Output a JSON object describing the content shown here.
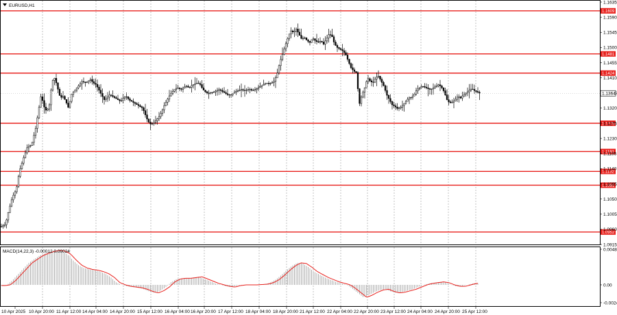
{
  "chart_data": [
    {
      "type": "candlestick",
      "title": "EURUSD,H1",
      "ylim": [
        1.0915,
        1.1635
      ],
      "y_ticks": [
        "1.1635",
        "1.1590",
        "1.1545",
        "1.1500",
        "1.1455",
        "1.1410",
        "1.1365",
        "1.1320",
        "1.1275",
        "1.1230",
        "1.1185",
        "1.1140",
        "1.1095",
        "1.1050",
        "1.1005",
        "1.0960",
        "1.0915"
      ],
      "x_ticks": [
        "10 Apr 2025",
        "10 Apr 20:00",
        "11 Apr 12:00",
        "14 Apr 04:00",
        "14 Apr 20:00",
        "15 Apr 12:00",
        "16 Apr 04:00",
        "16 Apr 20:00",
        "17 Apr 12:00",
        "18 Apr 04:00",
        "18 Apr 20:00",
        "21 Apr 12:00",
        "22 Apr 04:00",
        "22 Apr 20:00",
        "23 Apr 12:00",
        "24 Apr 04:00",
        "24 Apr 20:00",
        "25 Apr 12:00"
      ],
      "current_price": "1.1364",
      "levels": [
        "1.1609",
        "1.1481",
        "1.1424",
        "1.1275",
        "1.1191",
        "1.1132",
        "1.1091",
        "1.0952"
      ],
      "close_path": [
        [
          0,
          1.0968
        ],
        [
          6,
          1.0975
        ],
        [
          10,
          1.101
        ],
        [
          16,
          1.1055
        ],
        [
          22,
          1.108
        ],
        [
          26,
          1.113
        ],
        [
          32,
          1.117
        ],
        [
          38,
          1.1205
        ],
        [
          44,
          1.121
        ],
        [
          50,
          1.126
        ],
        [
          54,
          1.131
        ],
        [
          58,
          1.136
        ],
        [
          62,
          1.1325
        ],
        [
          66,
          1.131
        ],
        [
          70,
          1.133
        ],
        [
          74,
          1.14
        ],
        [
          78,
          1.141
        ],
        [
          82,
          1.138
        ],
        [
          86,
          1.135
        ],
        [
          90,
          1.1355
        ],
        [
          94,
          1.134
        ],
        [
          98,
          1.132
        ],
        [
          102,
          1.136
        ],
        [
          106,
          1.137
        ],
        [
          110,
          1.138
        ],
        [
          114,
          1.139
        ],
        [
          118,
          1.14
        ],
        [
          122,
          1.1395
        ],
        [
          126,
          1.14
        ],
        [
          130,
          1.1405
        ],
        [
          134,
          1.1395
        ],
        [
          138,
          1.139
        ],
        [
          142,
          1.1375
        ],
        [
          146,
          1.136
        ],
        [
          150,
          1.1345
        ],
        [
          154,
          1.135
        ],
        [
          158,
          1.136
        ],
        [
          162,
          1.1355
        ],
        [
          166,
          1.135
        ],
        [
          170,
          1.1345
        ],
        [
          174,
          1.134
        ],
        [
          178,
          1.135
        ],
        [
          182,
          1.1355
        ],
        [
          186,
          1.1345
        ],
        [
          190,
          1.134
        ],
        [
          194,
          1.1335
        ],
        [
          198,
          1.133
        ],
        [
          202,
          1.1325
        ],
        [
          206,
          1.132
        ],
        [
          210,
          1.13
        ],
        [
          214,
          1.128
        ],
        [
          218,
          1.1272
        ],
        [
          222,
          1.1276
        ],
        [
          226,
          1.1285
        ],
        [
          230,
          1.1295
        ],
        [
          234,
          1.131
        ],
        [
          238,
          1.133
        ],
        [
          242,
          1.1345
        ],
        [
          246,
          1.136
        ],
        [
          250,
          1.137
        ],
        [
          254,
          1.1378
        ],
        [
          258,
          1.138
        ],
        [
          262,
          1.1375
        ],
        [
          266,
          1.1382
        ],
        [
          270,
          1.1385
        ],
        [
          274,
          1.138
        ],
        [
          278,
          1.1388
        ],
        [
          282,
          1.1392
        ],
        [
          286,
          1.1395
        ],
        [
          290,
          1.139
        ],
        [
          294,
          1.1375
        ],
        [
          298,
          1.1368
        ],
        [
          302,
          1.1362
        ],
        [
          306,
          1.1366
        ],
        [
          310,
          1.1368
        ],
        [
          314,
          1.1372
        ],
        [
          318,
          1.1375
        ],
        [
          322,
          1.137
        ],
        [
          326,
          1.1365
        ],
        [
          330,
          1.136
        ],
        [
          334,
          1.1358
        ],
        [
          338,
          1.1365
        ],
        [
          342,
          1.137
        ],
        [
          346,
          1.1372
        ],
        [
          350,
          1.1375
        ],
        [
          354,
          1.1372
        ],
        [
          358,
          1.1374
        ],
        [
          362,
          1.1376
        ],
        [
          366,
          1.1372
        ],
        [
          370,
          1.1375
        ],
        [
          374,
          1.138
        ],
        [
          378,
          1.1385
        ],
        [
          382,
          1.139
        ],
        [
          386,
          1.1395
        ],
        [
          390,
          1.1392
        ],
        [
          394,
          1.1395
        ],
        [
          398,
          1.14
        ],
        [
          402,
          1.142
        ],
        [
          406,
          1.1455
        ],
        [
          410,
          1.148
        ],
        [
          414,
          1.1505
        ],
        [
          418,
          1.153
        ],
        [
          422,
          1.155
        ],
        [
          426,
          1.1545
        ],
        [
          430,
          1.1555
        ],
        [
          434,
          1.154
        ],
        [
          438,
          1.1525
        ],
        [
          442,
          1.153
        ],
        [
          446,
          1.152
        ],
        [
          450,
          1.1515
        ],
        [
          454,
          1.1528
        ],
        [
          458,
          1.152
        ],
        [
          462,
          1.1515
        ],
        [
          466,
          1.152
        ],
        [
          470,
          1.151
        ],
        [
          474,
          1.1525
        ],
        [
          478,
          1.154
        ],
        [
          482,
          1.1535
        ],
        [
          486,
          1.151
        ],
        [
          490,
          1.15
        ],
        [
          494,
          1.1495
        ],
        [
          498,
          1.149
        ],
        [
          502,
          1.148
        ],
        [
          506,
          1.146
        ],
        [
          510,
          1.144
        ],
        [
          514,
          1.143
        ],
        [
          518,
          1.1425
        ],
        [
          522,
          1.133
        ],
        [
          526,
          1.136
        ],
        [
          530,
          1.138
        ],
        [
          534,
          1.141
        ],
        [
          538,
          1.14
        ],
        [
          542,
          1.1395
        ],
        [
          546,
          1.141
        ],
        [
          550,
          1.1415
        ],
        [
          554,
          1.14
        ],
        [
          558,
          1.1385
        ],
        [
          562,
          1.136
        ],
        [
          566,
          1.1345
        ],
        [
          570,
          1.133
        ],
        [
          574,
          1.1325
        ],
        [
          578,
          1.1318
        ],
        [
          582,
          1.1322
        ],
        [
          586,
          1.133
        ],
        [
          590,
          1.134
        ],
        [
          594,
          1.135
        ],
        [
          598,
          1.1352
        ],
        [
          602,
          1.136
        ],
        [
          606,
          1.1375
        ],
        [
          610,
          1.138
        ],
        [
          614,
          1.1385
        ],
        [
          618,
          1.1382
        ],
        [
          622,
          1.1378
        ],
        [
          626,
          1.1375
        ],
        [
          630,
          1.138
        ],
        [
          634,
          1.1385
        ],
        [
          638,
          1.139
        ],
        [
          642,
          1.1382
        ],
        [
          646,
          1.1368
        ],
        [
          650,
          1.1345
        ],
        [
          654,
          1.1335
        ],
        [
          658,
          1.1338
        ],
        [
          662,
          1.1345
        ],
        [
          666,
          1.1355
        ],
        [
          670,
          1.135
        ],
        [
          674,
          1.136
        ],
        [
          678,
          1.1365
        ],
        [
          682,
          1.1372
        ],
        [
          686,
          1.1378
        ],
        [
          690,
          1.1372
        ],
        [
          694,
          1.1368
        ],
        [
          698,
          1.1364
        ]
      ]
    },
    {
      "type": "histogram",
      "title": "MACD(14,22,3) -0.00012 0.00024",
      "ylim": [
        -0.00243,
        0.00485
      ],
      "y_ticks": [
        "0.00485",
        "0.00",
        "-0.00243"
      ],
      "histogram": [
        [
          0,
          -0.0001
        ],
        [
          8,
          0.0
        ],
        [
          16,
          0.0006
        ],
        [
          24,
          0.0014
        ],
        [
          32,
          0.0022
        ],
        [
          40,
          0.003
        ],
        [
          48,
          0.0035
        ],
        [
          56,
          0.004
        ],
        [
          64,
          0.0043
        ],
        [
          72,
          0.00455
        ],
        [
          80,
          0.0047
        ],
        [
          88,
          0.0046
        ],
        [
          96,
          0.0042
        ],
        [
          104,
          0.0034
        ],
        [
          112,
          0.0027
        ],
        [
          120,
          0.0023
        ],
        [
          128,
          0.0021
        ],
        [
          136,
          0.002
        ],
        [
          144,
          0.0018
        ],
        [
          152,
          0.0015
        ],
        [
          160,
          0.001
        ],
        [
          168,
          0.0003
        ],
        [
          176,
          0.0
        ],
        [
          184,
          -0.0002
        ],
        [
          192,
          -0.0003
        ],
        [
          200,
          -0.0004
        ],
        [
          208,
          -0.0006
        ],
        [
          216,
          -0.0009
        ],
        [
          224,
          -0.0011
        ],
        [
          232,
          -0.0008
        ],
        [
          240,
          -0.0003
        ],
        [
          248,
          0.0004
        ],
        [
          256,
          0.0008
        ],
        [
          264,
          0.0009
        ],
        [
          272,
          0.0009
        ],
        [
          280,
          0.001
        ],
        [
          288,
          0.0011
        ],
        [
          296,
          0.0008
        ],
        [
          304,
          0.0005
        ],
        [
          312,
          0.0002
        ],
        [
          320,
          0.0
        ],
        [
          328,
          -0.0002
        ],
        [
          336,
          -0.0003
        ],
        [
          344,
          -0.0001
        ],
        [
          352,
          0.0
        ],
        [
          360,
          0.0
        ],
        [
          368,
          0.0
        ],
        [
          376,
          5e-05
        ],
        [
          384,
          0.0001
        ],
        [
          392,
          0.0003
        ],
        [
          400,
          0.0007
        ],
        [
          408,
          0.0013
        ],
        [
          416,
          0.002
        ],
        [
          424,
          0.0026
        ],
        [
          432,
          0.003
        ],
        [
          440,
          0.0029
        ],
        [
          448,
          0.0024
        ],
        [
          456,
          0.0018
        ],
        [
          464,
          0.0014
        ],
        [
          472,
          0.001
        ],
        [
          480,
          0.0007
        ],
        [
          488,
          0.0004
        ],
        [
          496,
          0.0002
        ],
        [
          504,
          0.0
        ],
        [
          512,
          -0.0005
        ],
        [
          520,
          -0.0011
        ],
        [
          528,
          -0.0017
        ],
        [
          536,
          -0.0014
        ],
        [
          544,
          -0.001
        ],
        [
          552,
          -0.0007
        ],
        [
          560,
          -0.0006
        ],
        [
          568,
          -0.0009
        ],
        [
          576,
          -0.0011
        ],
        [
          584,
          -0.001
        ],
        [
          592,
          -0.0008
        ],
        [
          600,
          -0.0006
        ],
        [
          608,
          -0.0003
        ],
        [
          616,
          0.0
        ],
        [
          624,
          0.0002
        ],
        [
          632,
          0.0003
        ],
        [
          640,
          0.0004
        ],
        [
          648,
          0.0003
        ],
        [
          656,
          0.0
        ],
        [
          664,
          -0.0002
        ],
        [
          672,
          -0.0002
        ],
        [
          680,
          0.0
        ],
        [
          688,
          0.0002
        ],
        [
          696,
          0.00024
        ]
      ]
    }
  ],
  "colors": {
    "level_line": "#e8201c",
    "signal_line": "#e8201c",
    "candles": "#000000",
    "histogram": "#a6a6a6",
    "grid": "#9a9a9a"
  },
  "icons": {
    "symbol_menu": "triangle-down-icon"
  }
}
